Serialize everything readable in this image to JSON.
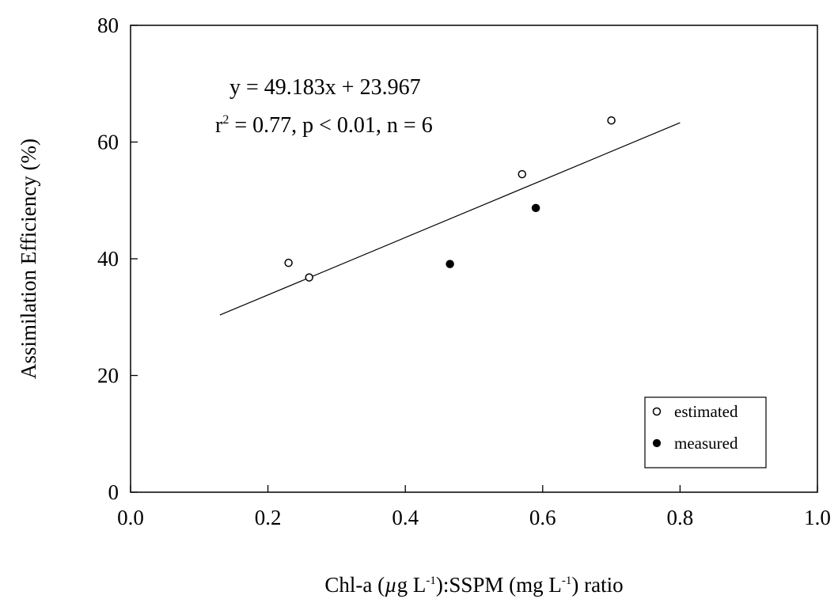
{
  "chart_data": {
    "type": "scatter",
    "xlabel": "Chl-a (µg L-1):SSPM (mg L-1) ratio",
    "xlabel_parts": {
      "a": "Chl-a (",
      "mu": "µ",
      "b": "g L",
      "sup1": "-1",
      "c": "):SSPM (mg L",
      "sup2": "-1",
      "d": ") ratio"
    },
    "ylabel": "Assimilation Efficiency (%)",
    "xlim": [
      0.0,
      1.0
    ],
    "ylim": [
      0,
      80
    ],
    "xticks": [
      "0.0",
      "0.2",
      "0.4",
      "0.6",
      "0.8",
      "1.0"
    ],
    "yticks": [
      "0",
      "20",
      "40",
      "60",
      "80"
    ],
    "xtick_values": [
      0.0,
      0.2,
      0.4,
      0.6,
      0.8,
      1.0
    ],
    "ytick_values": [
      0,
      20,
      40,
      60,
      80
    ],
    "series": [
      {
        "name": "estimated",
        "marker": "open-circle",
        "x": [
          0.23,
          0.26,
          0.57,
          0.7
        ],
        "y": [
          39.3,
          36.8,
          54.5,
          63.7
        ]
      },
      {
        "name": "measured",
        "marker": "filled-circle",
        "x": [
          0.465,
          0.59
        ],
        "y": [
          39.1,
          48.7
        ]
      }
    ],
    "regression": {
      "slope": 49.183,
      "intercept": 23.967,
      "x_range": [
        0.13,
        0.8
      ]
    },
    "annotations": {
      "equation": "y = 49.183x + 23.967",
      "stats_r": "r",
      "stats_sup": "2",
      "stats_rest": " = 0.77, p < 0.01, n = 6"
    },
    "legend": {
      "position": "bottom-right",
      "entries": [
        "estimated",
        "measured"
      ]
    },
    "grid": false
  }
}
